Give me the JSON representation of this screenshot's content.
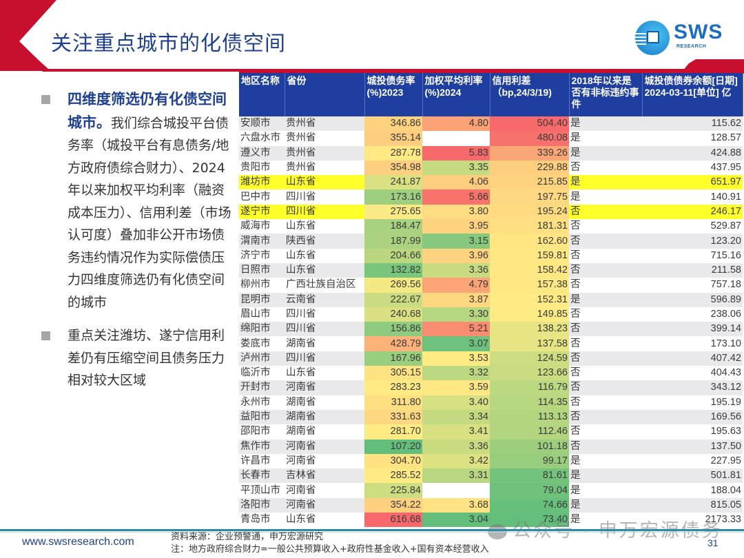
{
  "header": {
    "title": "关注重点城市的化债空间",
    "logo_text": "SWS",
    "logo_subtext": "RESEARCH"
  },
  "left_panel": {
    "bullets": [
      {
        "emphasis": "四维度筛选仍有化债空间城市。",
        "text": "我们综合城投平台债务率（城投平台有息债务/地方政府债综合财力）、2024年以来加权平均利率（融资成本压力）、信用利差（市场认可度）叠加非公开市场债务违约情况作为实际偿债压力四维度筛选仍有化债空间的城市"
      },
      {
        "emphasis": "",
        "text": "重点关注潍坊、遂宁信用利差仍有压缩空间且债务压力相对较大区域"
      }
    ]
  },
  "table": {
    "columns": [
      "地区名称",
      "省份",
      "城投债务率(%)2023",
      "加权平均利率(%)2024",
      "信用利差（bp,24/3/19)",
      "2018年以来是否有非标违约事件",
      "城投债债券余额[日期] 2024-03-11[单位] 亿"
    ],
    "highlight_color": "#ffff2a",
    "scale_colors": {
      "low": "#63be7b",
      "mid": "#ffeb84",
      "high": "#f8696b"
    },
    "rows": [
      {
        "city": "安顺市",
        "province": "贵州省",
        "debt_ratio": "346.86",
        "rate": "4.80",
        "spread": "504.40",
        "default": "是",
        "balance": "115.62",
        "highlight": false
      },
      {
        "city": "六盘水市",
        "province": "贵州省",
        "debt_ratio": "355.14",
        "rate": "",
        "spread": "480.08",
        "default": "是",
        "balance": "128.57",
        "highlight": false
      },
      {
        "city": "遵义市",
        "province": "贵州省",
        "debt_ratio": "287.78",
        "rate": "5.83",
        "spread": "339.26",
        "default": "是",
        "balance": "424.88",
        "highlight": false
      },
      {
        "city": "贵阳市",
        "province": "贵州省",
        "debt_ratio": "354.98",
        "rate": "3.35",
        "spread": "229.88",
        "default": "否",
        "balance": "437.95",
        "highlight": false
      },
      {
        "city": "潍坊市",
        "province": "山东省",
        "debt_ratio": "241.87",
        "rate": "4.06",
        "spread": "215.85",
        "default": "是",
        "balance": "651.97",
        "highlight": true
      },
      {
        "city": "巴中市",
        "province": "四川省",
        "debt_ratio": "173.16",
        "rate": "5.66",
        "spread": "197.75",
        "default": "是",
        "balance": "140.91",
        "highlight": false
      },
      {
        "city": "遂宁市",
        "province": "四川省",
        "debt_ratio": "275.65",
        "rate": "3.80",
        "spread": "195.24",
        "default": "否",
        "balance": "246.17",
        "highlight": true
      },
      {
        "city": "威海市",
        "province": "山东省",
        "debt_ratio": "184.47",
        "rate": "3.95",
        "spread": "181.31",
        "default": "否",
        "balance": "529.87",
        "highlight": false
      },
      {
        "city": "渭南市",
        "province": "陕西省",
        "debt_ratio": "187.99",
        "rate": "3.15",
        "spread": "162.60",
        "default": "否",
        "balance": "123.20",
        "highlight": false
      },
      {
        "city": "济宁市",
        "province": "山东省",
        "debt_ratio": "204.66",
        "rate": "3.96",
        "spread": "159.81",
        "default": "否",
        "balance": "715.16",
        "highlight": false
      },
      {
        "city": "日照市",
        "province": "山东省",
        "debt_ratio": "132.82",
        "rate": "3.36",
        "spread": "158.42",
        "default": "否",
        "balance": "211.58",
        "highlight": false
      },
      {
        "city": "柳州市",
        "province": "广西壮族自治区",
        "debt_ratio": "269.56",
        "rate": "4.79",
        "spread": "157.38",
        "default": "否",
        "balance": "757.18",
        "highlight": false
      },
      {
        "city": "昆明市",
        "province": "云南省",
        "debt_ratio": "222.67",
        "rate": "3.87",
        "spread": "152.31",
        "default": "是",
        "balance": "596.89",
        "highlight": false
      },
      {
        "city": "眉山市",
        "province": "四川省",
        "debt_ratio": "240.68",
        "rate": "3.30",
        "spread": "149.85",
        "default": "否",
        "balance": "238.06",
        "highlight": false
      },
      {
        "city": "绵阳市",
        "province": "四川省",
        "debt_ratio": "156.86",
        "rate": "5.21",
        "spread": "138.23",
        "default": "否",
        "balance": "399.14",
        "highlight": false
      },
      {
        "city": "娄底市",
        "province": "湖南省",
        "debt_ratio": "428.79",
        "rate": "3.07",
        "spread": "137.58",
        "default": "否",
        "balance": "173.10",
        "highlight": false
      },
      {
        "city": "泸州市",
        "province": "四川省",
        "debt_ratio": "167.96",
        "rate": "3.53",
        "spread": "124.59",
        "default": "否",
        "balance": "407.42",
        "highlight": false
      },
      {
        "city": "临沂市",
        "province": "山东省",
        "debt_ratio": "305.15",
        "rate": "3.32",
        "spread": "123.66",
        "default": "否",
        "balance": "404.43",
        "highlight": false
      },
      {
        "city": "开封市",
        "province": "河南省",
        "debt_ratio": "283.23",
        "rate": "3.59",
        "spread": "116.79",
        "default": "否",
        "balance": "343.12",
        "highlight": false
      },
      {
        "city": "永州市",
        "province": "湖南省",
        "debt_ratio": "311.80",
        "rate": "3.40",
        "spread": "114.35",
        "default": "否",
        "balance": "195.19",
        "highlight": false
      },
      {
        "city": "益阳市",
        "province": "湖南省",
        "debt_ratio": "331.63",
        "rate": "3.34",
        "spread": "113.13",
        "default": "否",
        "balance": "169.56",
        "highlight": false
      },
      {
        "city": "邵阳市",
        "province": "湖南省",
        "debt_ratio": "281.70",
        "rate": "3.41",
        "spread": "112.46",
        "default": "否",
        "balance": "195.63",
        "highlight": false
      },
      {
        "city": "焦作市",
        "province": "河南省",
        "debt_ratio": "107.20",
        "rate": "3.36",
        "spread": "101.18",
        "default": "否",
        "balance": "137.50",
        "highlight": false
      },
      {
        "city": "许昌市",
        "province": "河南省",
        "debt_ratio": "304.70",
        "rate": "3.42",
        "spread": "99.17",
        "default": "是",
        "balance": "227.95",
        "highlight": false
      },
      {
        "city": "长春市",
        "province": "吉林省",
        "debt_ratio": "285.52",
        "rate": "3.31",
        "spread": "81.61",
        "default": "是",
        "balance": "501.81",
        "highlight": false
      },
      {
        "city": "平顶山市",
        "province": "河南省",
        "debt_ratio": "225.84",
        "rate": "",
        "spread": "79.04",
        "default": "是",
        "balance": "188.04",
        "highlight": false
      },
      {
        "city": "洛阳市",
        "province": "河南省",
        "debt_ratio": "354.22",
        "rate": "3.68",
        "spread": "74.66",
        "default": "是",
        "balance": "815.05",
        "highlight": false
      },
      {
        "city": "青岛市",
        "province": "山东省",
        "debt_ratio": "616.68",
        "rate": "3.04",
        "spread": "73.40",
        "default": "是",
        "balance": "2173.33",
        "highlight": false
      }
    ]
  },
  "footer": {
    "url": "www.swsresearch.com",
    "source": "资料来源：企业预警通，申万宏源研究",
    "note": "注：地方政府综合财力=一般公共预算收入+政府性基金收入+国有资本经营收入",
    "page_number": "31",
    "watermark": "公众号 · 申万宏源债务"
  }
}
